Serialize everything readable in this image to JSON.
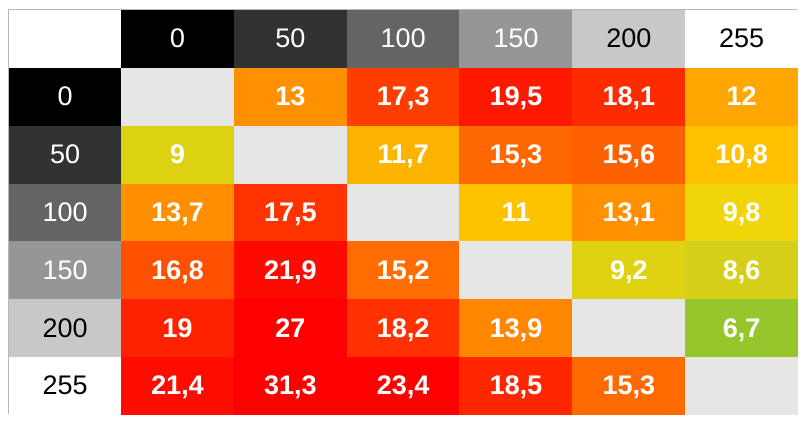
{
  "chart_data": {
    "type": "heatmap",
    "title": "",
    "xlabel": "",
    "ylabel": "",
    "x_categories": [
      "0",
      "50",
      "100",
      "150",
      "200",
      "255"
    ],
    "y_categories": [
      "0",
      "50",
      "100",
      "150",
      "200",
      "255"
    ],
    "header_gray_levels": [
      0,
      50,
      100,
      150,
      200,
      255
    ],
    "values": [
      [
        null,
        "13",
        "17,3",
        "19,5",
        "18,1",
        "12"
      ],
      [
        "9",
        null,
        "11,7",
        "15,3",
        "15,6",
        "10,8"
      ],
      [
        "13,7",
        "17,5",
        null,
        "11",
        "13,1",
        "9,8"
      ],
      [
        "16,8",
        "21,9",
        "15,2",
        null,
        "9,2",
        "8,6"
      ],
      [
        "19",
        "27",
        "18,2",
        "13,9",
        null,
        "6,7"
      ],
      [
        "21,4",
        "31,3",
        "23,4",
        "18,5",
        "15,3",
        null
      ]
    ],
    "cell_colors": [
      [
        "#e6e6e6",
        "#ff9000",
        "#ff3d00",
        "#ff1800",
        "#ff2b00",
        "#ffa600"
      ],
      [
        "#dcd212",
        "#e6e6e6",
        "#fdb400",
        "#ff6700",
        "#ff6000",
        "#ffc000"
      ],
      [
        "#ff8f00",
        "#ff3300",
        "#e6e6e6",
        "#fdc300",
        "#ff9000",
        "#f0d50a"
      ],
      [
        "#ff5000",
        "#ff0a00",
        "#ff6d00",
        "#e6e6e6",
        "#dfd210",
        "#d6cf1a"
      ],
      [
        "#ff2200",
        "#ff0000",
        "#ff3100",
        "#ff8700",
        "#e6e6e6",
        "#96c62c"
      ],
      [
        "#ff0c00",
        "#ff0000",
        "#ff0000",
        "#ff2600",
        "#ff6a00",
        "#e6e6e6"
      ]
    ]
  }
}
